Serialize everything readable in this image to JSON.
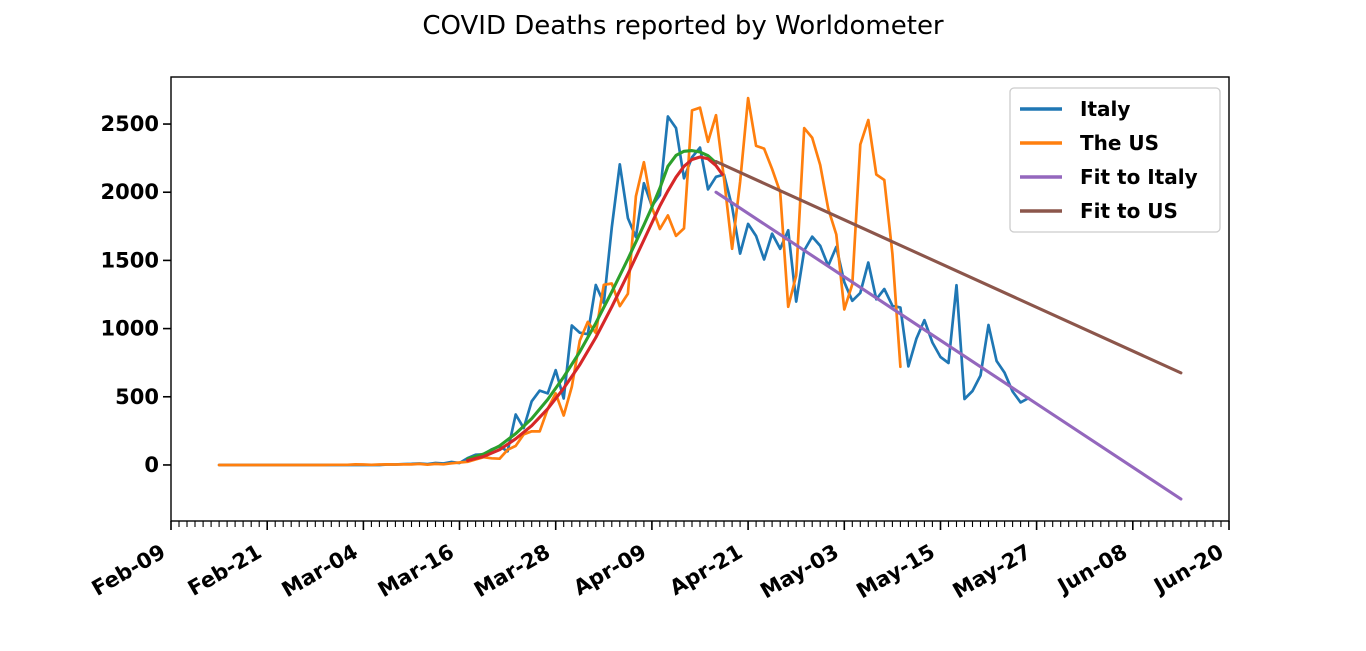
{
  "title": "COVID Deaths reported by Worldometer",
  "chart_data": {
    "type": "line",
    "title": "COVID Deaths reported by Worldometer",
    "x_axis": {
      "unit": "date",
      "day0_label": "Feb-09",
      "tick_labels": [
        "Feb-09",
        "Feb-21",
        "Mar-04",
        "Mar-16",
        "Mar-28",
        "Apr-09",
        "Apr-21",
        "May-03",
        "May-15",
        "May-27",
        "Jun-08",
        "Jun-20"
      ],
      "tick_interval_days": 12,
      "range_days": [
        0,
        132
      ],
      "minor_tick_every_days": 1
    },
    "y_axis": {
      "ticks": [
        0,
        500,
        1000,
        1500,
        2000,
        2500
      ],
      "range": [
        -411,
        2845
      ],
      "grid": false
    },
    "legend": {
      "position": "upper right",
      "entries": [
        "Italy",
        "The US",
        "Fit to Italy",
        "Fit to US"
      ]
    },
    "series": [
      {
        "name": "Italy",
        "color": "#1f77b4",
        "kind": "data",
        "in_legend": true,
        "start_day": 6,
        "daily_values": [
          0,
          0,
          0,
          0,
          0,
          0,
          0,
          0,
          0,
          0,
          0,
          0,
          0,
          0,
          0,
          0,
          0,
          0,
          0,
          0,
          0,
          3,
          3,
          6,
          8,
          11,
          6,
          14,
          11,
          22,
          14,
          50,
          75,
          78,
          114,
          136,
          100,
          370,
          270,
          467,
          545,
          525,
          695,
          487,
          1023,
          970,
          959,
          1320,
          1187,
          1743,
          2205,
          1810,
          1671,
          2066,
          1899,
          1979,
          2555,
          2471,
          2102,
          2257,
          2327,
          2021,
          2113,
          2129,
          1893,
          1550,
          1768,
          1679,
          1507,
          1696,
          1585,
          1721,
          1198,
          1573,
          1674,
          1607,
          1460,
          1599,
          1340,
          1204,
          1262,
          1485,
          1215,
          1290,
          1168,
          1154,
          723,
          926,
          1062,
          898,
          792,
          748,
          1318,
          484,
          542,
          656,
          1026,
          762,
          676,
          539,
          459,
          490
        ]
      },
      {
        "name": "The US",
        "color": "#ff7f0e",
        "kind": "data",
        "in_legend": true,
        "start_day": 6,
        "daily_values": [
          0,
          0,
          0,
          0,
          0,
          0,
          0,
          0,
          0,
          0,
          0,
          0,
          0,
          0,
          1,
          1,
          1,
          4,
          3,
          1,
          3,
          4,
          3,
          4,
          4,
          8,
          2,
          8,
          5,
          12,
          18,
          23,
          41,
          57,
          49,
          46,
          111,
          140,
          225,
          247,
          246,
          411,
          525,
          363,
          573,
          912,
          1049,
          968,
          1321,
          1331,
          1165,
          1255,
          1970,
          2220,
          1890,
          1730,
          1830,
          1680,
          1735,
          2600,
          2620,
          2370,
          2565,
          2100,
          1585,
          2075,
          2690,
          2340,
          2320,
          2170,
          2000,
          1160,
          1390,
          2470,
          2400,
          2200,
          1880,
          1690,
          1140,
          1325,
          2350,
          2530,
          2130,
          2090,
          1550,
          720
        ]
      },
      {
        "name": "Rising fit (green, unlabeled)",
        "color": "#2ca02c",
        "kind": "fit",
        "in_legend": false,
        "points": [
          [
            37,
            45
          ],
          [
            39,
            80
          ],
          [
            41,
            140
          ],
          [
            43,
            230
          ],
          [
            45,
            340
          ],
          [
            47,
            480
          ],
          [
            49,
            645
          ],
          [
            51,
            830
          ],
          [
            53,
            1040
          ],
          [
            55,
            1270
          ],
          [
            57,
            1510
          ],
          [
            58,
            1635
          ],
          [
            59,
            1760
          ],
          [
            60,
            1890
          ],
          [
            61,
            2030
          ],
          [
            61.5,
            2110
          ],
          [
            62,
            2190
          ],
          [
            63,
            2270
          ],
          [
            64,
            2300
          ],
          [
            65,
            2305
          ],
          [
            66,
            2295
          ],
          [
            67,
            2268
          ],
          [
            68,
            2215
          ]
        ]
      },
      {
        "name": "Rising fit (red, unlabeled)",
        "color": "#d62728",
        "kind": "fit",
        "in_legend": false,
        "points": [
          [
            37,
            33
          ],
          [
            39,
            62
          ],
          [
            41,
            112
          ],
          [
            43,
            192
          ],
          [
            45,
            288
          ],
          [
            47,
            412
          ],
          [
            49,
            562
          ],
          [
            51,
            735
          ],
          [
            53,
            935
          ],
          [
            55,
            1160
          ],
          [
            57,
            1400
          ],
          [
            58,
            1525
          ],
          [
            59,
            1650
          ],
          [
            60,
            1775
          ],
          [
            61,
            1900
          ],
          [
            62,
            2010
          ],
          [
            63,
            2110
          ],
          [
            64,
            2190
          ],
          [
            65,
            2240
          ],
          [
            66,
            2258
          ],
          [
            67,
            2245
          ],
          [
            68,
            2195
          ],
          [
            68.8,
            2130
          ]
        ]
      },
      {
        "name": "Fit to Italy",
        "color": "#9467bd",
        "kind": "fit",
        "in_legend": true,
        "points": [
          [
            68,
            2000
          ],
          [
            126,
            -250
          ]
        ]
      },
      {
        "name": "Fit to US",
        "color": "#8c564b",
        "kind": "fit",
        "in_legend": true,
        "points": [
          [
            68,
            2225
          ],
          [
            126,
            675
          ]
        ]
      }
    ]
  }
}
